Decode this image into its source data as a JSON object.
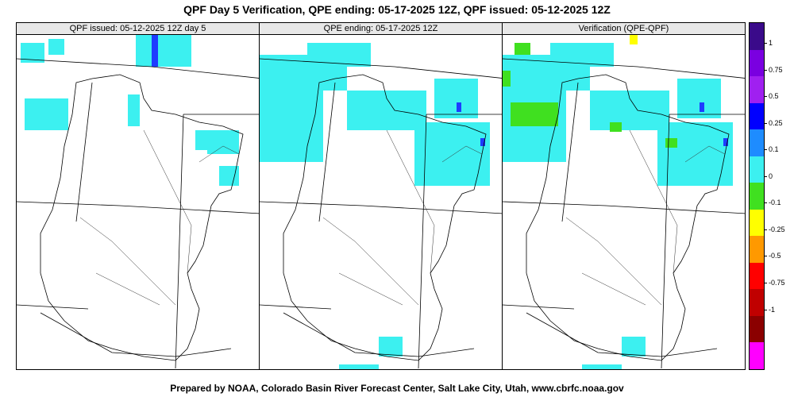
{
  "title": "QPF Day 5 Verification, QPE ending: 05-17-2025 12Z, QPF issued: 05-12-2025 12Z",
  "panels": [
    {
      "label": "QPF issued: 05-12-2025 12Z day 5"
    },
    {
      "label": "QPE ending: 05-17-2025 12Z"
    },
    {
      "label": "Verification (QPE-QPF)"
    }
  ],
  "colorbar": {
    "labels": [
      "1",
      "0.75",
      "0.5",
      "0.25",
      "0.1",
      "0",
      "-0.1",
      "-0.25",
      "-0.5",
      "-0.75",
      "-1"
    ],
    "colors": [
      "#3a0a8a",
      "#7a00e0",
      "#a020f0",
      "#0000ff",
      "#1e8cff",
      "#3cf0f0",
      "#40e020",
      "#ffff00",
      "#ff9900",
      "#ff0000",
      "#c00000",
      "#8b0000",
      "#ff00ff"
    ]
  },
  "footer": "Prepared by NOAA, Colorado Basin River Forecast Center, Salt Lake City, Utah, www.cbrfc.noaa.gov"
}
